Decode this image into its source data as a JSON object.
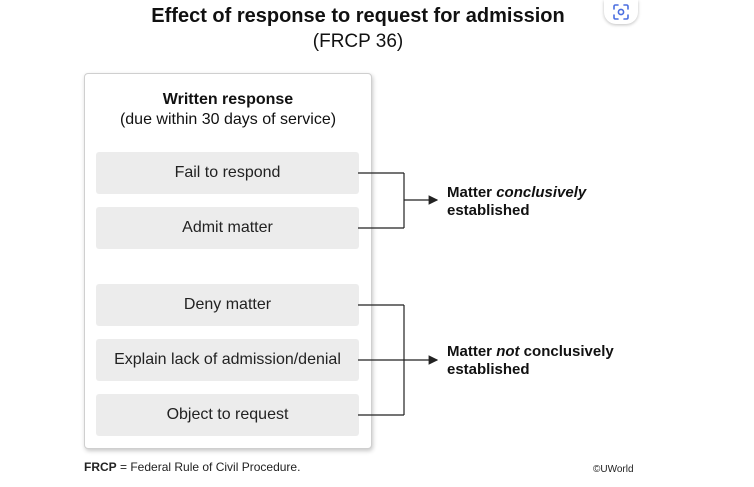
{
  "title": "Effect of response to request for admission",
  "subtitle": "(FRCP 36)",
  "toolbar": {
    "lens_icon": "lens-search-icon"
  },
  "panel": {
    "heading": "Written response",
    "subheading": "(due within 30 days of service)"
  },
  "options": [
    "Fail to respond",
    "Admit matter",
    "Deny matter",
    "Explain lack of admission/denial",
    "Object to request"
  ],
  "results": {
    "established": {
      "prefix": "Matter ",
      "emphasis": "conclusively",
      "suffix": "",
      "line2": "established"
    },
    "not_established": {
      "prefix": "Matter ",
      "emphasis": "not",
      "suffix": " conclusively",
      "line2": "established"
    }
  },
  "footnote": {
    "abbr": "FRCP",
    "text": " = Federal Rule of Civil Procedure."
  },
  "copyright": "©UWorld",
  "colors": {
    "box_fill": "#ececec",
    "line": "#222222"
  }
}
